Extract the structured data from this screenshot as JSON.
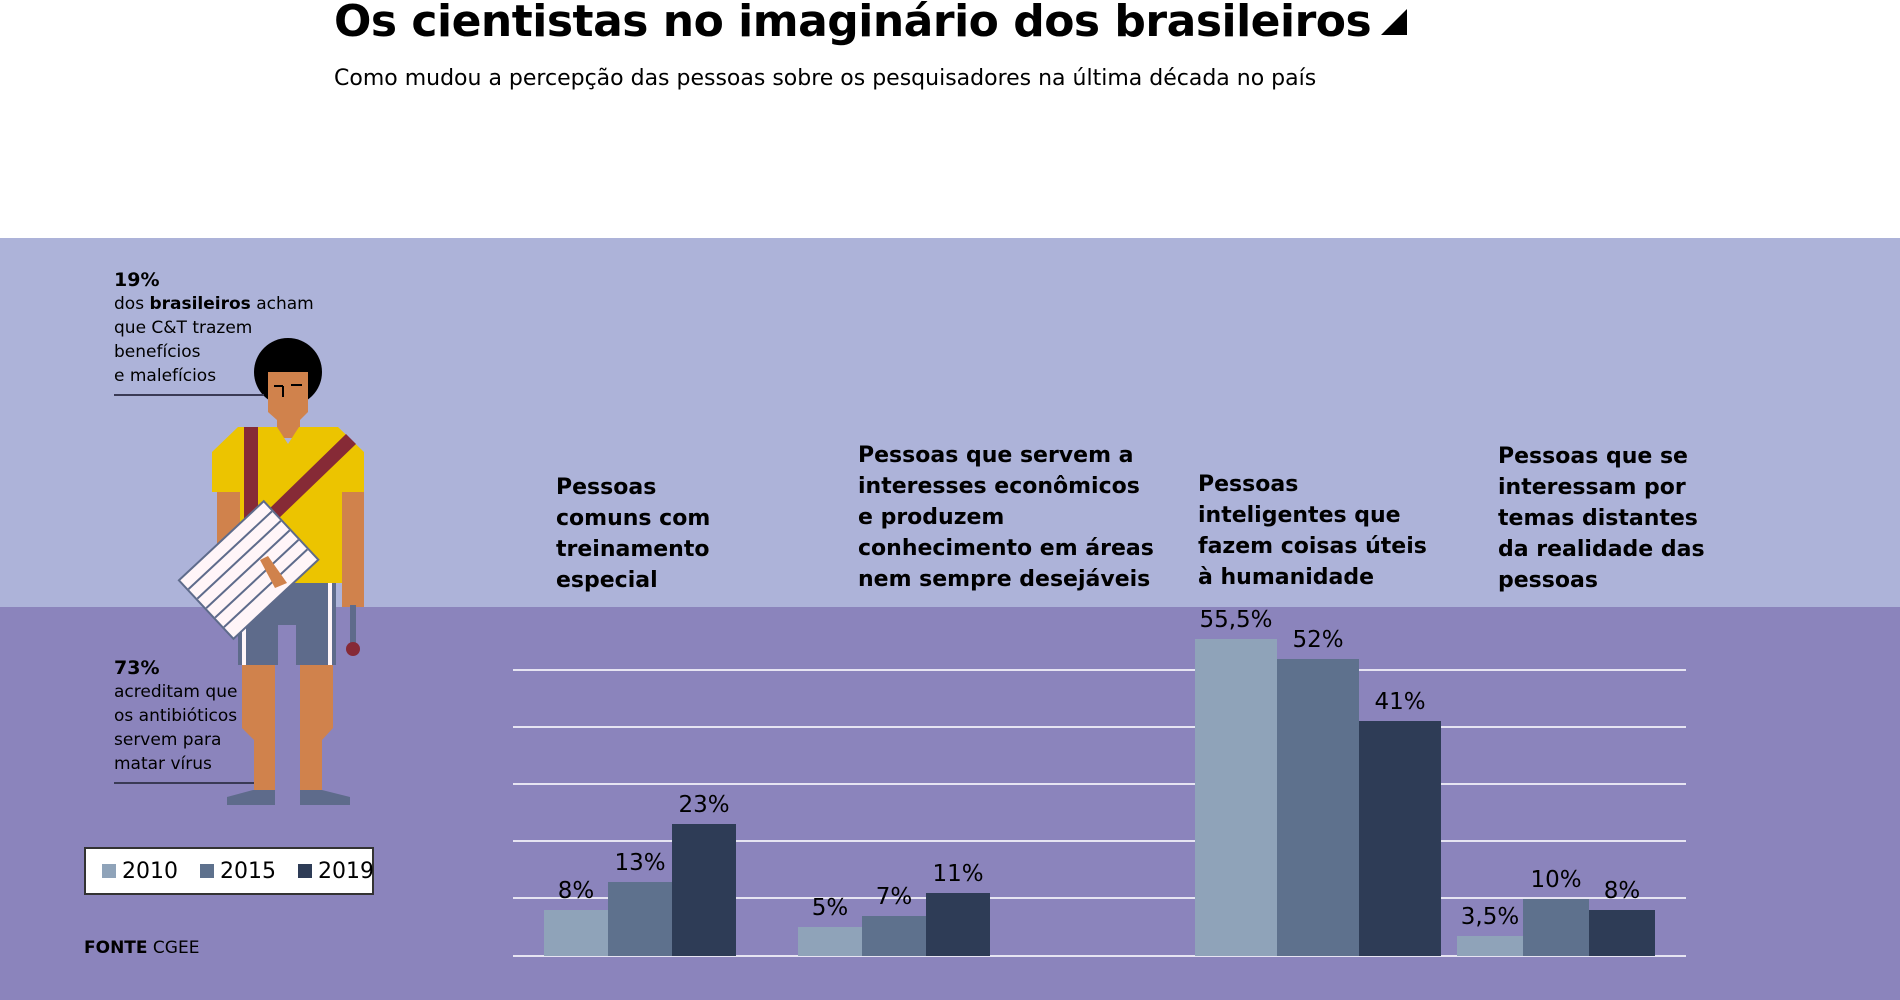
{
  "header": {
    "title": "Os cientistas no imaginário dos brasileiros",
    "subtitle": "Como mudou a percepção das pessoas sobre os pesquisadores na última década no país"
  },
  "notes": {
    "top": {
      "pct": "19%",
      "line1_pre": "dos ",
      "line1_bold": "brasileiros",
      "line1_post": " acham",
      "line2": "que C&T trazem",
      "line3": "benefícios",
      "line4": "e malefícios"
    },
    "bottom": {
      "pct": "73%",
      "line1": "acreditam que",
      "line2": "os antibióticos",
      "line3": "servem para",
      "line4": "matar vírus"
    }
  },
  "legend": {
    "items": [
      {
        "label": "2010",
        "color": "#8fa3b9"
      },
      {
        "label": "2015",
        "color": "#5e718d"
      },
      {
        "label": "2019",
        "color": "#2e3c56"
      }
    ]
  },
  "source": {
    "label": "FONTE",
    "value": "CGEE"
  },
  "colors": {
    "band_light": "#adb3d9",
    "band_dark": "#8b84bc",
    "shirt": "#ecc400",
    "strap": "#862a36",
    "skin": "#d0824c",
    "shorts": "#5e6b8b"
  },
  "categories": [
    {
      "lines": [
        "Pessoas",
        "comuns com",
        "treinamento",
        "especial"
      ],
      "labels": [
        "8%",
        "13%",
        "23%"
      ]
    },
    {
      "lines": [
        "Pessoas que servem a",
        "interesses econômicos",
        "e produzem",
        "conhecimento em áreas",
        "nem sempre desejáveis"
      ],
      "labels": [
        "5%",
        "7%",
        "11%"
      ]
    },
    {
      "lines": [
        "Pessoas",
        "inteligentes que",
        "fazem coisas úteis",
        "à humanidade"
      ],
      "labels": [
        "55,5%",
        "52%",
        "41%"
      ]
    },
    {
      "lines": [
        "Pessoas que se",
        "interessam por",
        "temas distantes",
        "da realidade das",
        "pessoas"
      ],
      "labels": [
        "3,5%",
        "10%",
        "8%"
      ]
    }
  ],
  "chart_data": {
    "type": "bar",
    "title": "Os cientistas no imaginário dos brasileiros",
    "subtitle": "Como mudou a percepção das pessoas sobre os pesquisadores na última década no país",
    "categories": [
      "Pessoas comuns com treinamento especial",
      "Pessoas que servem a interesses econômicos e produzem conhecimento em áreas nem sempre desejáveis",
      "Pessoas inteligentes que fazem coisas úteis à humanidade",
      "Pessoas que se interessam por temas distantes da realidade das pessoas"
    ],
    "series": [
      {
        "name": "2010",
        "values": [
          8,
          5,
          55.5,
          3.5
        ]
      },
      {
        "name": "2015",
        "values": [
          13,
          7,
          52,
          10
        ]
      },
      {
        "name": "2019",
        "values": [
          23,
          11,
          41,
          8
        ]
      }
    ],
    "xlabel": "",
    "ylabel": "%",
    "ylim": [
      0,
      60
    ],
    "grid": true,
    "gridlines": [
      10,
      20,
      30,
      40,
      50
    ],
    "legend_position": "bottom-left",
    "source": "FONTE CGEE"
  }
}
